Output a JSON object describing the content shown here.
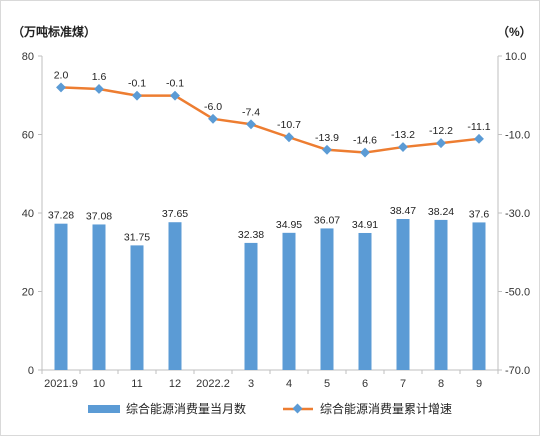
{
  "chart_data": {
    "type": "bar",
    "left_unit": "（万吨标准煤）",
    "right_unit": "（%）",
    "categories": [
      "2021.9",
      "10",
      "11",
      "12",
      "2022.2",
      "3",
      "4",
      "5",
      "6",
      "7",
      "8",
      "9"
    ],
    "left_axis": {
      "min": 0,
      "max": 80,
      "ticks": [
        "0",
        "20",
        "40",
        "60",
        "80"
      ]
    },
    "right_axis": {
      "min": -70,
      "max": 10,
      "ticks": [
        "-70.0",
        "-50.0",
        "-30.0",
        "-10.0",
        "10.0"
      ]
    },
    "series": [
      {
        "name": "综合能源消费量当月数",
        "type": "bar",
        "axis": "left",
        "color": "#5b9bd5",
        "values": [
          37.28,
          37.08,
          31.75,
          37.65,
          null,
          32.38,
          34.95,
          36.07,
          34.91,
          38.47,
          38.24,
          37.6
        ],
        "labels": [
          "37.28",
          "37.08",
          "31.75",
          "37.65",
          "",
          "32.38",
          "34.95",
          "36.07",
          "34.91",
          "38.47",
          "38.24",
          "37.6"
        ]
      },
      {
        "name": "综合能源消费量累计增速",
        "type": "line",
        "axis": "right",
        "color": "#ed7d31",
        "marker_color": "#5b9bd5",
        "values": [
          2.0,
          1.6,
          -0.1,
          -0.1,
          -6.0,
          -7.4,
          -10.7,
          -13.9,
          -14.6,
          -13.2,
          -12.2,
          -11.1
        ],
        "labels": [
          "2.0",
          "1.6",
          "-0.1",
          "-0.1",
          "-6.0",
          "-7.4",
          "-10.7",
          "-13.9",
          "-14.6",
          "-13.2",
          "-12.2",
          "-11.1"
        ]
      }
    ],
    "legend_position": "bottom"
  }
}
